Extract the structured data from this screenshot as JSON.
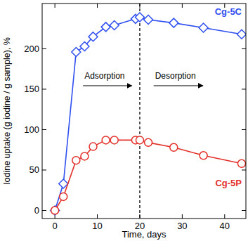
{
  "chart_data": {
    "type": "line",
    "x_label": "Time, days",
    "y_label": "Iodine uptake (g iodine / g sample), %",
    "x": [
      0,
      2,
      5,
      7,
      9,
      12,
      14,
      19,
      20,
      22,
      28,
      35,
      44
    ],
    "series": [
      {
        "name": "Cg-5C",
        "color": "#2f4ff0",
        "marker": "diamond",
        "line_style": "solid",
        "values": [
          0,
          33,
          196,
          203,
          215,
          227,
          229,
          237,
          239,
          236,
          232,
          226,
          218
        ]
      },
      {
        "name": "Cg-5P",
        "color": "#e3302a",
        "marker": "circle",
        "line_style": "solid",
        "values": [
          0,
          17,
          62,
          67,
          79,
          87,
          87,
          87,
          87,
          84,
          78,
          68,
          58
        ]
      }
    ],
    "xlim": [
      -3,
      45
    ],
    "ylim": [
      -10,
      256
    ],
    "xticks": [
      0,
      10,
      20,
      30,
      40
    ],
    "yticks": [
      0,
      50,
      100,
      150,
      200
    ],
    "grid": false,
    "reference_line": {
      "x": 20,
      "line_style": "dashed"
    },
    "annotations": [
      {
        "text": "Adsorption",
        "x": 11.7,
        "y": 163
      },
      {
        "text": "Desorption",
        "x": 28.4,
        "y": 163
      }
    ]
  }
}
